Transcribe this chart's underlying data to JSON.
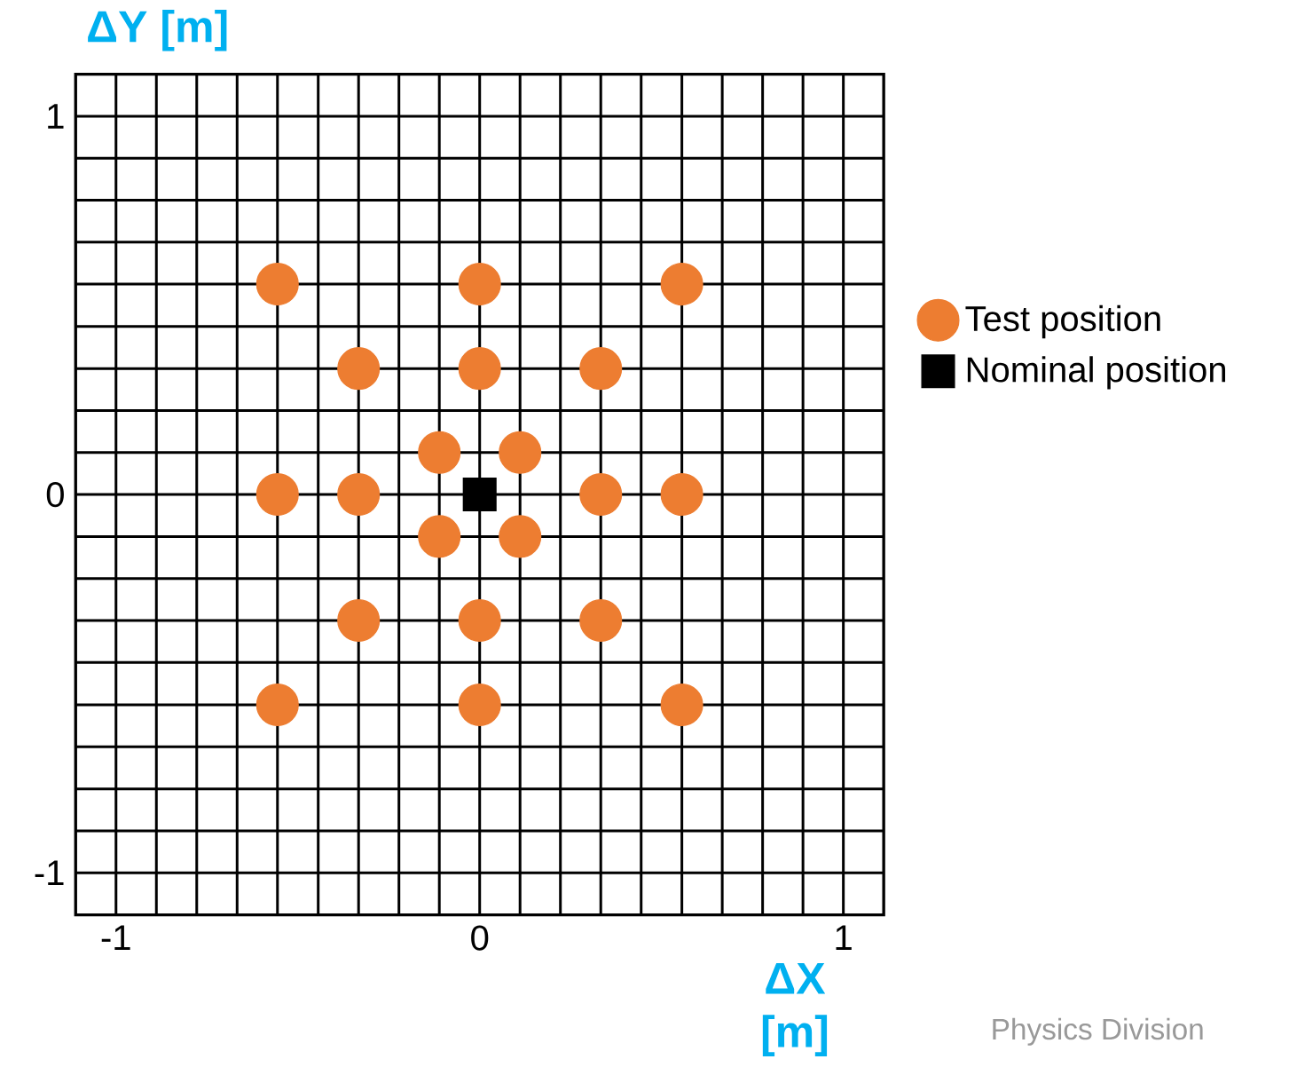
{
  "chart_data": {
    "type": "scatter",
    "xlabel": "ΔX [m]",
    "ylabel": "ΔY [m]",
    "xlim": [
      -1.111,
      1.111
    ],
    "ylim": [
      -1.111,
      1.111
    ],
    "xticks": [
      -1,
      {
        "value": -0.889,
        "label": null
      },
      {
        "value": -0.778,
        "label": null
      },
      {
        "value": -0.667,
        "label": null
      },
      {
        "value": -0.556,
        "label": null
      },
      {
        "value": -0.444,
        "label": null
      },
      {
        "value": -0.333,
        "label": null
      },
      {
        "value": -0.222,
        "label": null
      },
      {
        "value": -0.111,
        "label": null
      },
      0,
      {
        "value": 0.111,
        "label": null
      },
      {
        "value": 0.222,
        "label": null
      },
      {
        "value": 0.333,
        "label": null
      },
      {
        "value": 0.444,
        "label": null
      },
      {
        "value": 0.556,
        "label": null
      },
      {
        "value": 0.667,
        "label": null
      },
      {
        "value": 0.778,
        "label": null
      },
      {
        "value": 0.889,
        "label": null
      },
      1
    ],
    "yticks": [
      -1,
      {
        "value": -0.889,
        "label": null
      },
      {
        "value": -0.778,
        "label": null
      },
      {
        "value": -0.667,
        "label": null
      },
      {
        "value": -0.556,
        "label": null
      },
      {
        "value": -0.444,
        "label": null
      },
      {
        "value": -0.333,
        "label": null
      },
      {
        "value": -0.222,
        "label": null
      },
      {
        "value": -0.111,
        "label": null
      },
      0,
      {
        "value": 0.111,
        "label": null
      },
      {
        "value": 0.222,
        "label": null
      },
      {
        "value": 0.333,
        "label": null
      },
      {
        "value": 0.444,
        "label": null
      },
      {
        "value": 0.556,
        "label": null
      },
      {
        "value": 0.667,
        "label": null
      },
      {
        "value": 0.778,
        "label": null
      },
      {
        "value": 0.889,
        "label": null
      },
      1
    ],
    "grid": true,
    "legend": "right",
    "series": [
      {
        "name": "Test position",
        "color": "#ed7d31",
        "marker": "circle",
        "x": [
          -0.556,
          0,
          0.556,
          -0.333,
          0,
          0.333,
          -0.111,
          0.111,
          -0.556,
          -0.333,
          0.333,
          0.556,
          -0.111,
          0.111,
          -0.333,
          0,
          0.333,
          -0.556,
          0,
          0.556
        ],
        "values": [
          0.556,
          0.556,
          0.556,
          0.333,
          0.333,
          0.333,
          0.111,
          0.111,
          0,
          0,
          0,
          0,
          -0.111,
          -0.111,
          -0.333,
          -0.333,
          -0.333,
          -0.556,
          -0.556,
          -0.556
        ]
      },
      {
        "name": "Nominal position",
        "color": "#000000",
        "marker": "square",
        "x": [
          0
        ],
        "values": [
          0
        ]
      }
    ],
    "annotations": [
      "Physics Division"
    ]
  }
}
